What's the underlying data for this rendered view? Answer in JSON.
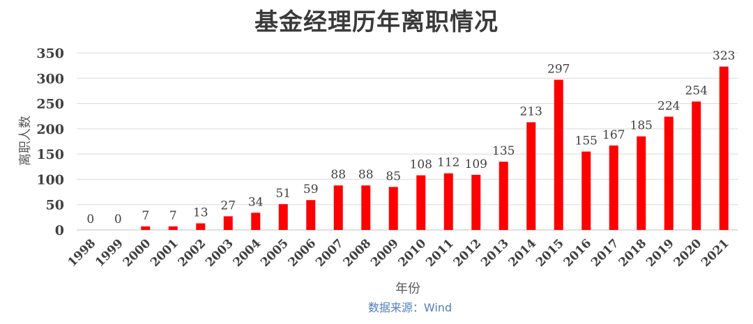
{
  "chart_data": {
    "type": "bar",
    "title": "基金经理历年离职情况",
    "xlabel": "年份",
    "ylabel": "离职人数",
    "source": "数据来源：Wind",
    "categories": [
      "1998",
      "1999",
      "2000",
      "2001",
      "2002",
      "2003",
      "2004",
      "2005",
      "2006",
      "2007",
      "2008",
      "2009",
      "2010",
      "2011",
      "2012",
      "2013",
      "2014",
      "2015",
      "2016",
      "2017",
      "2018",
      "2019",
      "2020",
      "2021"
    ],
    "values": [
      0,
      0,
      7,
      7,
      13,
      27,
      34,
      51,
      59,
      88,
      88,
      85,
      108,
      112,
      109,
      135,
      213,
      297,
      155,
      167,
      185,
      224,
      254,
      323
    ],
    "ylim": [
      0,
      350
    ],
    "yticks": [
      0,
      50,
      100,
      150,
      200,
      250,
      300,
      350
    ],
    "grid": true,
    "data_labels": true,
    "legend": "none",
    "bar_color": "#ff0000",
    "grid_color": "#d9d9d9",
    "axis_color": "#bfbfbf"
  }
}
